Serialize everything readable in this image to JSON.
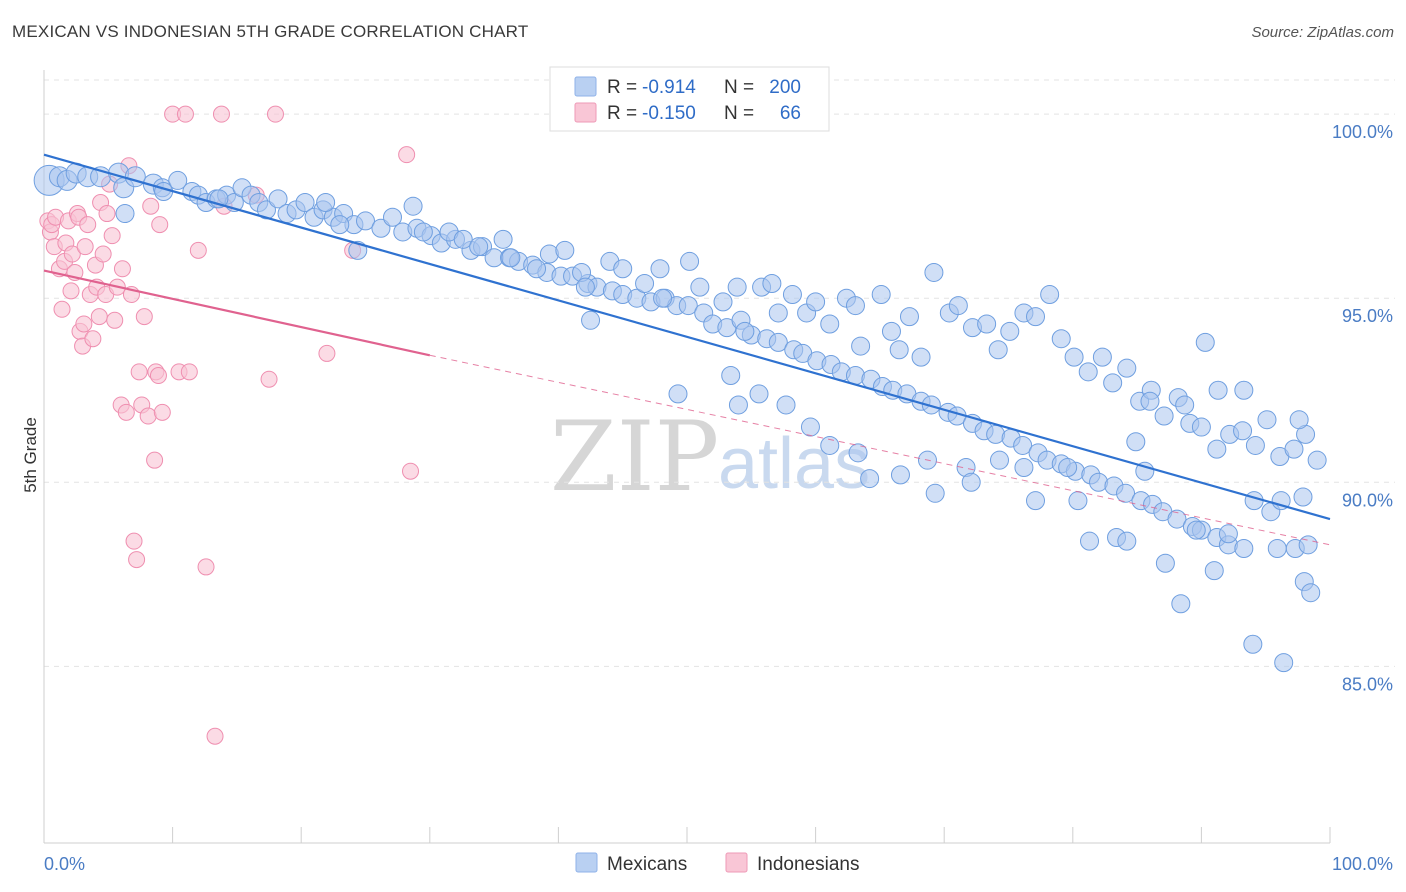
{
  "header": {
    "title": "MEXICAN VS INDONESIAN 5TH GRADE CORRELATION CHART",
    "source": "Source: ZipAtlas.com"
  },
  "watermark": {
    "zip": "ZIP",
    "atlas": "atlas"
  },
  "legend": {
    "rows": [
      {
        "r_label": "R =",
        "r_value": "-0.914",
        "n_label": "N =",
        "n_value": "200",
        "color": "#a8c4ee"
      },
      {
        "r_label": "R =",
        "r_value": "-0.150",
        "n_label": "N =",
        "n_value": "66",
        "color": "#f6b4c8"
      }
    ]
  },
  "bottom_legend": [
    "Mexicans",
    "Indonesians"
  ],
  "chart_data": {
    "type": "scatter",
    "ylabel": "5th Grade",
    "xlim": [
      0,
      100
    ],
    "ylim": [
      80.2,
      101.2
    ],
    "x_tick_labels": [
      {
        "value": 0,
        "label": "0.0%"
      },
      {
        "value": 100,
        "label": "100.0%"
      }
    ],
    "y_ticks": [
      {
        "value": 85,
        "label": "85.0%"
      },
      {
        "value": 90,
        "label": "90.0%"
      },
      {
        "value": 95,
        "label": "95.0%"
      },
      {
        "value": 100,
        "label": "100.0%"
      }
    ],
    "grid": true,
    "colors": {
      "mexicans": "#6f9fe0",
      "mexicans_fill": "#a9c5ee",
      "mexicans_line": "#2f72d0",
      "indonesians": "#ef8fb0",
      "indonesians_fill": "#f8c3d4",
      "indonesians_line": "#e0628f"
    },
    "series": [
      {
        "name": "Mexicans",
        "points": [
          [
            0.4,
            98.2
          ],
          [
            1.2,
            98.3
          ],
          [
            1.8,
            98.2
          ],
          [
            2.5,
            98.4
          ],
          [
            3.4,
            98.3
          ],
          [
            4.4,
            98.3
          ],
          [
            5.8,
            98.4
          ],
          [
            6.2,
            98.0
          ],
          [
            7.1,
            98.3
          ],
          [
            8.5,
            98.1
          ],
          [
            9.2,
            98.0
          ],
          [
            10.4,
            98.2
          ],
          [
            11.5,
            97.9
          ],
          [
            12.0,
            97.8
          ],
          [
            12.6,
            97.6
          ],
          [
            13.4,
            97.7
          ],
          [
            14.2,
            97.8
          ],
          [
            14.8,
            97.6
          ],
          [
            15.4,
            98.0
          ],
          [
            16.1,
            97.8
          ],
          [
            16.7,
            97.6
          ],
          [
            17.3,
            97.4
          ],
          [
            18.2,
            97.7
          ],
          [
            18.9,
            97.3
          ],
          [
            19.6,
            97.4
          ],
          [
            20.3,
            97.6
          ],
          [
            21.0,
            97.2
          ],
          [
            21.7,
            97.4
          ],
          [
            22.5,
            97.2
          ],
          [
            23.3,
            97.3
          ],
          [
            24.1,
            97.0
          ],
          [
            25.0,
            97.1
          ],
          [
            26.2,
            96.9
          ],
          [
            27.1,
            97.2
          ],
          [
            27.9,
            96.8
          ],
          [
            29.0,
            96.9
          ],
          [
            30.1,
            96.7
          ],
          [
            30.9,
            96.5
          ],
          [
            32.0,
            96.6
          ],
          [
            33.2,
            96.3
          ],
          [
            34.1,
            96.4
          ],
          [
            35.0,
            96.1
          ],
          [
            36.2,
            96.1
          ],
          [
            36.9,
            96.0
          ],
          [
            38.0,
            95.9
          ],
          [
            39.1,
            95.7
          ],
          [
            40.2,
            95.6
          ],
          [
            41.1,
            95.6
          ],
          [
            42.3,
            95.4
          ],
          [
            43.0,
            95.3
          ],
          [
            44.2,
            95.2
          ],
          [
            45.0,
            95.1
          ],
          [
            46.1,
            95.0
          ],
          [
            47.2,
            94.9
          ],
          [
            48.3,
            95.0
          ],
          [
            49.2,
            94.8
          ],
          [
            50.1,
            94.8
          ],
          [
            51.3,
            94.6
          ],
          [
            52.0,
            94.3
          ],
          [
            53.1,
            94.2
          ],
          [
            54.2,
            94.4
          ],
          [
            55.0,
            94.0
          ],
          [
            56.2,
            93.9
          ],
          [
            57.1,
            93.8
          ],
          [
            58.3,
            93.6
          ],
          [
            59.0,
            93.5
          ],
          [
            60.1,
            93.3
          ],
          [
            61.2,
            93.2
          ],
          [
            62.0,
            93.0
          ],
          [
            63.1,
            92.9
          ],
          [
            64.3,
            92.8
          ],
          [
            65.2,
            92.6
          ],
          [
            66.0,
            92.5
          ],
          [
            67.1,
            92.4
          ],
          [
            68.2,
            92.2
          ],
          [
            69.0,
            92.1
          ],
          [
            70.3,
            91.9
          ],
          [
            71.0,
            91.8
          ],
          [
            72.2,
            91.6
          ],
          [
            73.1,
            91.4
          ],
          [
            74.0,
            91.3
          ],
          [
            75.2,
            91.2
          ],
          [
            76.1,
            91.0
          ],
          [
            77.3,
            90.8
          ],
          [
            78.0,
            90.6
          ],
          [
            79.1,
            90.5
          ],
          [
            80.2,
            90.3
          ],
          [
            81.4,
            90.2
          ],
          [
            82.0,
            90.0
          ],
          [
            83.2,
            89.9
          ],
          [
            84.1,
            89.7
          ],
          [
            85.3,
            89.5
          ],
          [
            86.2,
            89.4
          ],
          [
            87.0,
            89.2
          ],
          [
            88.1,
            89.0
          ],
          [
            89.3,
            88.8
          ],
          [
            90.0,
            88.7
          ],
          [
            91.2,
            88.5
          ],
          [
            92.1,
            88.3
          ],
          [
            93.3,
            88.2
          ],
          [
            6.3,
            97.3
          ],
          [
            9.3,
            97.9
          ],
          [
            13.6,
            97.7
          ],
          [
            21.9,
            97.6
          ],
          [
            23.0,
            97.0
          ],
          [
            24.4,
            96.3
          ],
          [
            28.7,
            97.5
          ],
          [
            29.5,
            96.8
          ],
          [
            31.5,
            96.8
          ],
          [
            32.6,
            96.6
          ],
          [
            33.8,
            96.4
          ],
          [
            35.7,
            96.6
          ],
          [
            36.3,
            96.1
          ],
          [
            38.3,
            95.8
          ],
          [
            39.3,
            96.2
          ],
          [
            40.5,
            96.3
          ],
          [
            41.8,
            95.7
          ],
          [
            42.1,
            95.3
          ],
          [
            42.5,
            94.4
          ],
          [
            44.0,
            96.0
          ],
          [
            45.0,
            95.8
          ],
          [
            46.7,
            95.4
          ],
          [
            47.9,
            95.8
          ],
          [
            48.1,
            95.0
          ],
          [
            50.2,
            96.0
          ],
          [
            51.0,
            95.3
          ],
          [
            52.8,
            94.9
          ],
          [
            53.9,
            95.3
          ],
          [
            54.5,
            94.1
          ],
          [
            55.8,
            95.3
          ],
          [
            56.6,
            95.4
          ],
          [
            57.1,
            94.6
          ],
          [
            58.2,
            95.1
          ],
          [
            59.3,
            94.6
          ],
          [
            60.0,
            94.9
          ],
          [
            61.1,
            94.3
          ],
          [
            62.4,
            95.0
          ],
          [
            63.1,
            94.8
          ],
          [
            63.5,
            93.7
          ],
          [
            65.1,
            95.1
          ],
          [
            65.9,
            94.1
          ],
          [
            66.5,
            93.6
          ],
          [
            67.3,
            94.5
          ],
          [
            68.2,
            93.4
          ],
          [
            69.2,
            95.7
          ],
          [
            70.4,
            94.6
          ],
          [
            71.1,
            94.8
          ],
          [
            72.2,
            94.2
          ],
          [
            73.3,
            94.3
          ],
          [
            74.2,
            93.6
          ],
          [
            75.1,
            94.1
          ],
          [
            76.2,
            94.6
          ],
          [
            77.1,
            94.5
          ],
          [
            78.2,
            95.1
          ],
          [
            79.1,
            93.9
          ],
          [
            80.1,
            93.4
          ],
          [
            81.2,
            93.0
          ],
          [
            82.3,
            93.4
          ],
          [
            83.1,
            92.7
          ],
          [
            84.2,
            93.1
          ],
          [
            85.2,
            92.2
          ],
          [
            86.1,
            92.5
          ],
          [
            87.1,
            91.8
          ],
          [
            88.2,
            92.3
          ],
          [
            89.1,
            91.6
          ],
          [
            90.0,
            91.5
          ],
          [
            91.2,
            90.9
          ],
          [
            92.2,
            91.3
          ],
          [
            93.3,
            92.5
          ],
          [
            94.2,
            91.0
          ],
          [
            95.1,
            91.7
          ],
          [
            96.1,
            90.7
          ],
          [
            97.2,
            90.9
          ],
          [
            98.1,
            91.3
          ],
          [
            99.0,
            90.6
          ],
          [
            49.3,
            92.4
          ],
          [
            53.4,
            92.9
          ],
          [
            54.0,
            92.1
          ],
          [
            55.6,
            92.4
          ],
          [
            57.7,
            92.1
          ],
          [
            59.6,
            91.5
          ],
          [
            61.1,
            91.0
          ],
          [
            63.3,
            90.8
          ],
          [
            64.2,
            90.1
          ],
          [
            66.6,
            90.2
          ],
          [
            68.7,
            90.6
          ],
          [
            69.3,
            89.7
          ],
          [
            71.7,
            90.4
          ],
          [
            72.1,
            90.0
          ],
          [
            74.3,
            90.6
          ],
          [
            76.2,
            90.4
          ],
          [
            77.1,
            89.5
          ],
          [
            79.6,
            90.4
          ],
          [
            80.4,
            89.5
          ],
          [
            81.3,
            88.4
          ],
          [
            83.4,
            88.5
          ],
          [
            84.2,
            88.4
          ],
          [
            85.6,
            90.3
          ],
          [
            87.2,
            87.8
          ],
          [
            88.4,
            86.7
          ],
          [
            89.6,
            88.7
          ],
          [
            91.0,
            87.6
          ],
          [
            92.1,
            88.6
          ],
          [
            94.0,
            85.6
          ],
          [
            95.9,
            88.2
          ],
          [
            96.4,
            85.1
          ],
          [
            97.3,
            88.2
          ],
          [
            98.0,
            87.3
          ],
          [
            98.5,
            87.0
          ],
          [
            97.9,
            89.6
          ],
          [
            97.6,
            91.7
          ],
          [
            98.3,
            88.3
          ],
          [
            86.0,
            92.2
          ],
          [
            84.9,
            91.1
          ],
          [
            88.7,
            92.1
          ],
          [
            90.3,
            93.8
          ],
          [
            91.3,
            92.5
          ],
          [
            93.2,
            91.4
          ],
          [
            94.1,
            89.5
          ],
          [
            95.4,
            89.2
          ],
          [
            96.2,
            89.5
          ]
        ]
      },
      {
        "name": "Indonesians",
        "points": [
          [
            0.3,
            97.1
          ],
          [
            0.5,
            96.8
          ],
          [
            0.6,
            97.0
          ],
          [
            0.8,
            96.4
          ],
          [
            0.9,
            97.2
          ],
          [
            1.2,
            95.8
          ],
          [
            1.4,
            94.7
          ],
          [
            1.6,
            96.0
          ],
          [
            1.7,
            96.5
          ],
          [
            1.9,
            97.1
          ],
          [
            2.1,
            95.2
          ],
          [
            2.2,
            96.2
          ],
          [
            2.4,
            95.7
          ],
          [
            2.6,
            97.3
          ],
          [
            2.7,
            97.2
          ],
          [
            2.8,
            94.1
          ],
          [
            3.0,
            93.7
          ],
          [
            3.1,
            94.3
          ],
          [
            3.2,
            96.4
          ],
          [
            3.4,
            97.0
          ],
          [
            3.6,
            95.1
          ],
          [
            3.8,
            93.9
          ],
          [
            4.0,
            95.9
          ],
          [
            4.1,
            95.3
          ],
          [
            4.3,
            94.5
          ],
          [
            4.4,
            97.6
          ],
          [
            4.6,
            96.2
          ],
          [
            4.8,
            95.1
          ],
          [
            4.9,
            97.3
          ],
          [
            5.1,
            98.1
          ],
          [
            5.3,
            96.7
          ],
          [
            5.5,
            94.4
          ],
          [
            5.7,
            95.3
          ],
          [
            6.0,
            92.1
          ],
          [
            6.1,
            95.8
          ],
          [
            6.4,
            91.9
          ],
          [
            6.6,
            98.6
          ],
          [
            6.8,
            95.1
          ],
          [
            7.0,
            88.4
          ],
          [
            7.2,
            87.9
          ],
          [
            7.4,
            93.0
          ],
          [
            7.6,
            92.1
          ],
          [
            7.8,
            94.5
          ],
          [
            8.1,
            91.8
          ],
          [
            8.3,
            97.5
          ],
          [
            8.6,
            90.6
          ],
          [
            8.7,
            93.0
          ],
          [
            8.9,
            92.9
          ],
          [
            9.0,
            97.0
          ],
          [
            9.2,
            91.9
          ],
          [
            10.0,
            100.0
          ],
          [
            11.0,
            100.0
          ],
          [
            10.5,
            93.0
          ],
          [
            11.3,
            93.0
          ],
          [
            12.0,
            96.3
          ],
          [
            12.6,
            87.7
          ],
          [
            13.3,
            83.1
          ],
          [
            13.8,
            100.0
          ],
          [
            14.0,
            97.5
          ],
          [
            16.5,
            97.8
          ],
          [
            17.5,
            92.8
          ],
          [
            18.0,
            100.0
          ],
          [
            22.0,
            93.5
          ],
          [
            24.0,
            96.3
          ],
          [
            28.5,
            90.3
          ],
          [
            28.2,
            98.9
          ]
        ]
      }
    ],
    "trendlines": [
      {
        "series": "Mexicans",
        "x": [
          0,
          100
        ],
        "y": [
          98.9,
          89.0
        ]
      },
      {
        "series": "Indonesians",
        "x": [
          0,
          30
        ],
        "y": [
          95.75,
          93.45
        ],
        "dashed_extension_to": [
          100,
          88.3
        ]
      }
    ]
  }
}
